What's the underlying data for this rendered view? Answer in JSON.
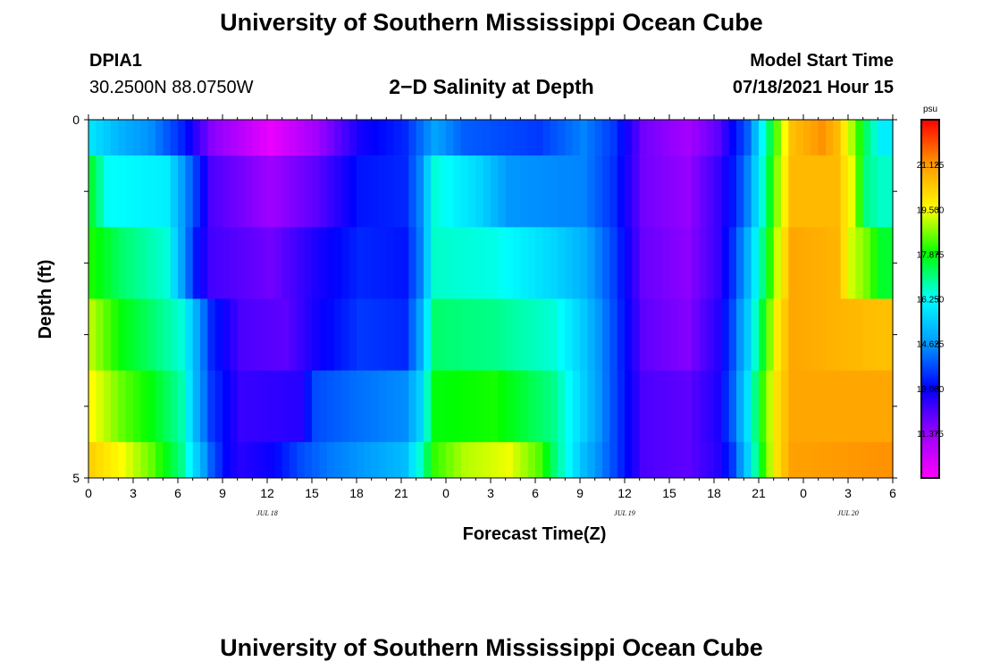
{
  "title": "University of Southern Mississippi Ocean Cube",
  "footer_title": "University of Southern Mississippi Ocean Cube",
  "station": {
    "id": "DPIA1",
    "coords": "30.2500N  88.0750W"
  },
  "subtitle": "2−D Salinity at Depth",
  "model_start": {
    "label": "Model Start Time",
    "value": "07/18/2021 Hour 15"
  },
  "chart_data": {
    "type": "heatmap",
    "title": "2−D Salinity at Depth",
    "xlabel": "Forecast Time(Z)",
    "ylabel": "Depth (ft)",
    "ylim": [
      0,
      5
    ],
    "y_ticks": [
      "0",
      "5"
    ],
    "x_ticks": [
      "0",
      "3",
      "6",
      "9",
      "12",
      "15",
      "18",
      "21",
      "0",
      "3",
      "6",
      "9",
      "12",
      "15",
      "18",
      "21",
      "0",
      "3",
      "6"
    ],
    "date_labels": [
      {
        "text": "JUL 18",
        "hour_index": 12
      },
      {
        "text": "JUL 19",
        "hour_index": 36
      },
      {
        "text": "JUL 20",
        "hour_index": 51
      }
    ],
    "colorbar": {
      "unit": "psu",
      "min": 9.75,
      "max": 22.75,
      "ticks": [
        "21.125",
        "19.500",
        "17.875",
        "16.250",
        "14.625",
        "13.000",
        "11.375"
      ],
      "colors": [
        "#ff00ff",
        "#9900ff",
        "#0000ff",
        "#0099ff",
        "#00ffff",
        "#00ff00",
        "#ffff00",
        "#ff9900",
        "#ff0000"
      ]
    },
    "hours": 54,
    "layers": [
      {
        "depth_range": "0-0.5 ft",
        "keypoints": [
          [
            0,
            15.8
          ],
          [
            2,
            15.0
          ],
          [
            4,
            14.5
          ],
          [
            6,
            13.4
          ],
          [
            8,
            11.6
          ],
          [
            12,
            10.1
          ],
          [
            15,
            11.2
          ],
          [
            18,
            12.8
          ],
          [
            21,
            13.4
          ],
          [
            23,
            14.8
          ],
          [
            25,
            14.0
          ],
          [
            30,
            13.6
          ],
          [
            33,
            14.4
          ],
          [
            35,
            13.6
          ],
          [
            37,
            11.8
          ],
          [
            40,
            11.2
          ],
          [
            42,
            12.0
          ],
          [
            43,
            13.0
          ],
          [
            44,
            14.0
          ],
          [
            45,
            16.2
          ],
          [
            46,
            18.5
          ],
          [
            47,
            20.5
          ],
          [
            49,
            21.2
          ],
          [
            50,
            20.6
          ],
          [
            51,
            19.0
          ],
          [
            52,
            17.2
          ],
          [
            53,
            16.0
          ]
        ]
      },
      {
        "depth_range": "0.5-1.5 ft",
        "keypoints": [
          [
            0,
            17.5
          ],
          [
            1,
            16.3
          ],
          [
            5,
            16.0
          ],
          [
            7,
            13.6
          ],
          [
            8,
            12.2
          ],
          [
            12,
            11.3
          ],
          [
            15,
            12.0
          ],
          [
            18,
            13.2
          ],
          [
            21,
            13.4
          ],
          [
            22,
            14.4
          ],
          [
            23,
            16.5
          ],
          [
            26,
            15.6
          ],
          [
            28,
            14.6
          ],
          [
            33,
            14.4
          ],
          [
            35,
            13.5
          ],
          [
            37,
            11.8
          ],
          [
            40,
            11.4
          ],
          [
            42,
            12.4
          ],
          [
            43,
            13.2
          ],
          [
            44,
            14.4
          ],
          [
            45,
            16.5
          ],
          [
            46,
            18.8
          ],
          [
            47,
            20.6
          ],
          [
            50,
            20.6
          ],
          [
            51,
            19.4
          ],
          [
            52,
            17.0
          ],
          [
            53,
            16.6
          ]
        ]
      },
      {
        "depth_range": "1.5-2.5 ft",
        "keypoints": [
          [
            0,
            18.0
          ],
          [
            2,
            17.2
          ],
          [
            5,
            16.5
          ],
          [
            7,
            13.2
          ],
          [
            8,
            12.3
          ],
          [
            12,
            11.8
          ],
          [
            15,
            12.7
          ],
          [
            18,
            13.4
          ],
          [
            21,
            13.2
          ],
          [
            22,
            14.3
          ],
          [
            23,
            16.6
          ],
          [
            27,
            16.4
          ],
          [
            31,
            15.6
          ],
          [
            33,
            15.0
          ],
          [
            35,
            13.7
          ],
          [
            37,
            11.9
          ],
          [
            40,
            11.5
          ],
          [
            42,
            12.4
          ],
          [
            43,
            13.5
          ],
          [
            44,
            15.0
          ],
          [
            45,
            17.0
          ],
          [
            46,
            19.2
          ],
          [
            47,
            20.9
          ],
          [
            50,
            20.7
          ],
          [
            51,
            19.2
          ],
          [
            52,
            18.6
          ],
          [
            53,
            17.6
          ]
        ]
      },
      {
        "depth_range": "2.5-3.5 ft",
        "keypoints": [
          [
            0,
            19.0
          ],
          [
            2,
            17.8
          ],
          [
            4,
            17.2
          ],
          [
            6,
            16.5
          ],
          [
            8,
            13.4
          ],
          [
            10,
            12.2
          ],
          [
            13,
            12.0
          ],
          [
            15,
            12.8
          ],
          [
            18,
            13.6
          ],
          [
            21,
            13.4
          ],
          [
            22,
            14.8
          ],
          [
            23,
            17.2
          ],
          [
            27,
            17.0
          ],
          [
            31,
            16.5
          ],
          [
            33,
            15.4
          ],
          [
            35,
            13.8
          ],
          [
            37,
            12.0
          ],
          [
            40,
            11.6
          ],
          [
            42,
            12.6
          ],
          [
            43,
            13.8
          ],
          [
            44,
            15.4
          ],
          [
            45,
            17.6
          ],
          [
            46,
            19.8
          ],
          [
            47,
            20.9
          ],
          [
            53,
            20.5
          ]
        ]
      },
      {
        "depth_range": "3.5-4.5 ft",
        "keypoints": [
          [
            0,
            19.5
          ],
          [
            2,
            18.5
          ],
          [
            4,
            17.8
          ],
          [
            6,
            16.8
          ],
          [
            7,
            15.0
          ],
          [
            8,
            13.6
          ],
          [
            10,
            12.4
          ],
          [
            14,
            12.6
          ],
          [
            15,
            13.8
          ],
          [
            18,
            14.2
          ],
          [
            21,
            14.5
          ],
          [
            22,
            15.5
          ],
          [
            23,
            17.8
          ],
          [
            27,
            18.0
          ],
          [
            31,
            17.0
          ],
          [
            33,
            15.5
          ],
          [
            35,
            13.8
          ],
          [
            37,
            12.2
          ],
          [
            40,
            12.0
          ],
          [
            42,
            12.7
          ],
          [
            43,
            14.0
          ],
          [
            44,
            15.8
          ],
          [
            45,
            18.2
          ],
          [
            46,
            20.0
          ],
          [
            47,
            20.9
          ],
          [
            53,
            20.9
          ]
        ]
      },
      {
        "depth_range": "4.5-5 ft",
        "keypoints": [
          [
            0,
            20.2
          ],
          [
            2,
            19.5
          ],
          [
            4,
            18.5
          ],
          [
            6,
            17.0
          ],
          [
            7,
            15.5
          ],
          [
            8,
            14.0
          ],
          [
            9,
            13.0
          ],
          [
            10,
            12.6
          ],
          [
            12,
            12.9
          ],
          [
            14,
            13.8
          ],
          [
            16,
            14.3
          ],
          [
            18,
            14.6
          ],
          [
            20,
            15.0
          ],
          [
            21,
            15.2
          ],
          [
            22,
            16.5
          ],
          [
            23,
            18.2
          ],
          [
            25,
            19.0
          ],
          [
            28,
            19.4
          ],
          [
            30,
            18.4
          ],
          [
            31,
            17.2
          ],
          [
            33,
            15.2
          ],
          [
            35,
            13.8
          ],
          [
            37,
            12.2
          ],
          [
            40,
            12.0
          ],
          [
            42,
            12.6
          ],
          [
            43,
            13.6
          ],
          [
            44,
            15.5
          ],
          [
            45,
            18.0
          ],
          [
            46,
            20.0
          ],
          [
            47,
            21.0
          ],
          [
            53,
            21.2
          ]
        ]
      }
    ]
  }
}
